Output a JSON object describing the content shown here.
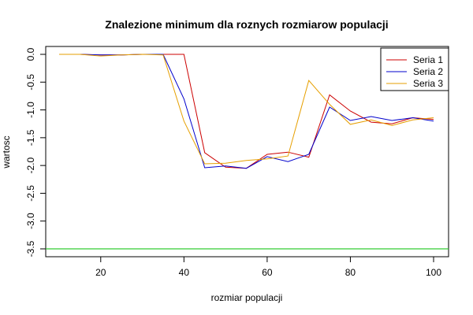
{
  "chart_data": {
    "type": "line",
    "title": "Znalezione minimum dla roznych rozmiarow populacji",
    "xlabel": "rozmiar populacji",
    "ylabel": "wartosc",
    "xlim": [
      10,
      100
    ],
    "ylim": [
      -3.5,
      0
    ],
    "xticks": [
      20,
      40,
      60,
      80,
      100
    ],
    "yticks": [
      0,
      -0.5,
      -1,
      -1.5,
      -2,
      -2.5,
      -3,
      -3.5
    ],
    "ytick_labels": [
      "0.0",
      "-0.5",
      "-1.0",
      "-1.5",
      "-2.0",
      "-2.5",
      "-3.0",
      "-3.5"
    ],
    "grid": false,
    "legend_position": "top-right",
    "x": [
      10,
      15,
      20,
      25,
      30,
      35,
      40,
      45,
      50,
      55,
      60,
      65,
      70,
      75,
      80,
      85,
      90,
      95,
      100
    ],
    "series": [
      {
        "name": "Seria 1",
        "color": "#cc0000",
        "values": [
          0.0,
          0.0,
          -0.01,
          -0.01,
          0.0,
          0.0,
          0.0,
          -1.77,
          -2.03,
          -2.05,
          -1.8,
          -1.76,
          -1.85,
          -0.73,
          -1.02,
          -1.22,
          -1.25,
          -1.14,
          -1.17
        ]
      },
      {
        "name": "Seria 2",
        "color": "#0000cc",
        "values": [
          0.0,
          0.0,
          -0.01,
          -0.01,
          0.0,
          0.0,
          -0.8,
          -2.04,
          -2.01,
          -2.05,
          -1.84,
          -1.93,
          -1.8,
          -0.95,
          -1.19,
          -1.12,
          -1.19,
          -1.14,
          -1.2
        ]
      },
      {
        "name": "Seria 3",
        "color": "#e69f00",
        "values": [
          0.0,
          0.0,
          -0.03,
          -0.01,
          0.0,
          -0.01,
          -1.2,
          -1.97,
          -1.96,
          -1.91,
          -1.88,
          -1.83,
          -0.47,
          -0.9,
          -1.26,
          -1.18,
          -1.28,
          -1.18,
          -1.14
        ]
      }
    ],
    "hline": {
      "y": -3.5,
      "color": "#33cc33"
    }
  }
}
